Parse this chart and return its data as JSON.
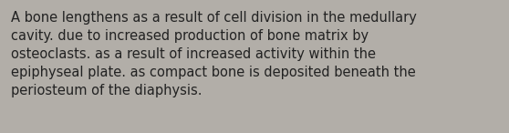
{
  "background_color": "#b2aea8",
  "text_color": "#222222",
  "text": "A bone lengthens as a result of cell division in the medullary\ncavity. due to increased production of bone matrix by\nosteoclasts. as a result of increased activity within the\nepiphyseal plate. as compact bone is deposited beneath the\nperiosteum of the diaphysis.",
  "font_size": 10.5,
  "font_family": "DejaVu Sans",
  "fig_width": 5.58,
  "fig_height": 1.46,
  "dpi": 100
}
